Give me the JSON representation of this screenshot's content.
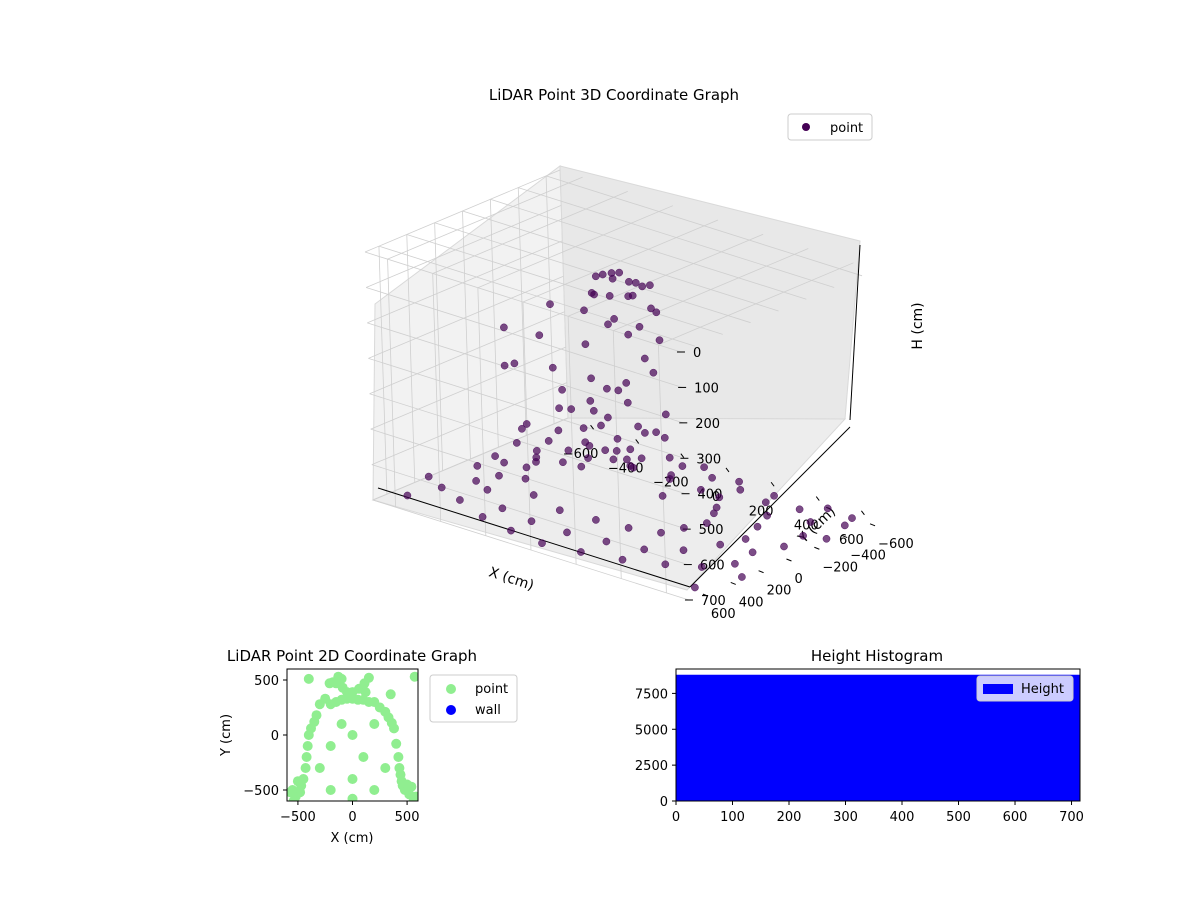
{
  "chart_data": [
    {
      "type": "scatter",
      "projection": "3d",
      "title": "LiDAR Point 3D Coordinate Graph",
      "xlabel": "X (cm)",
      "ylabel": "Y (cm)",
      "zlabel": "H (cm)",
      "xlim": [
        -700,
        700
      ],
      "ylim": [
        -700,
        700
      ],
      "zlim": [
        0,
        700
      ],
      "z_inverted": true,
      "xticks": [
        "−600",
        "−400",
        "−200",
        "0",
        "200",
        "400",
        "600"
      ],
      "yticks": [
        "−600",
        "−400",
        "−200",
        "0",
        "200",
        "400",
        "600"
      ],
      "zticks": [
        "0",
        "100",
        "200",
        "300",
        "400",
        "500",
        "600",
        "700"
      ],
      "grid": true,
      "legend": {
        "position": "top-right",
        "entries": [
          {
            "label": "point",
            "color": "#440154"
          }
        ]
      },
      "series": [
        {
          "name": "point",
          "color": "#440154",
          "points": [
            [
              -50,
              50,
              40
            ],
            [
              0,
              60,
              40
            ],
            [
              60,
              40,
              40
            ],
            [
              100,
              10,
              50
            ],
            [
              -100,
              20,
              60
            ],
            [
              -20,
              -20,
              40
            ],
            [
              40,
              -40,
              60
            ],
            [
              90,
              -60,
              60
            ],
            [
              -80,
              -60,
              60
            ],
            [
              10,
              100,
              80
            ],
            [
              -60,
              100,
              90
            ],
            [
              80,
              80,
              70
            ],
            [
              -140,
              -10,
              120
            ],
            [
              140,
              -20,
              120
            ],
            [
              -20,
              -110,
              120
            ],
            [
              60,
              -110,
              140
            ],
            [
              -120,
              80,
              150
            ],
            [
              120,
              70,
              150
            ],
            [
              -40,
              40,
              180
            ],
            [
              30,
              10,
              200
            ],
            [
              -100,
              -100,
              200
            ],
            [
              100,
              -100,
              220
            ],
            [
              -150,
              30,
              260
            ],
            [
              150,
              30,
              280
            ],
            [
              0,
              -150,
              300
            ],
            [
              -60,
              140,
              320
            ],
            [
              60,
              140,
              330
            ],
            [
              -30,
              -60,
              360
            ],
            [
              50,
              60,
              380
            ],
            [
              -130,
              -80,
              400
            ],
            [
              130,
              -80,
              420
            ],
            [
              -10,
              160,
              440
            ],
            [
              -160,
              -30,
              460
            ],
            [
              160,
              -20,
              470
            ],
            [
              40,
              -150,
              500
            ],
            [
              -40,
              -150,
              500
            ],
            [
              -90,
              120,
              520
            ],
            [
              90,
              120,
              540
            ],
            [
              0,
              0,
              560
            ],
            [
              -120,
              -120,
              580
            ],
            [
              120,
              -120,
              600
            ],
            [
              -180,
              40,
              610
            ],
            [
              180,
              40,
              620
            ],
            [
              -300,
              -200,
              650
            ],
            [
              -250,
              -300,
              660
            ],
            [
              -350,
              -100,
              655
            ],
            [
              -150,
              -280,
              660
            ],
            [
              0,
              -300,
              665
            ],
            [
              150,
              -280,
              662
            ],
            [
              250,
              -250,
              658
            ],
            [
              300,
              -150,
              660
            ],
            [
              350,
              -50,
              650
            ],
            [
              380,
              50,
              655
            ],
            [
              340,
              150,
              660
            ],
            [
              300,
              250,
              665
            ],
            [
              200,
              320,
              660
            ],
            [
              80,
              360,
              655
            ],
            [
              -80,
              360,
              660
            ],
            [
              -220,
              320,
              652
            ],
            [
              -330,
              200,
              648
            ],
            [
              -400,
              80,
              650
            ],
            [
              -420,
              -20,
              655
            ],
            [
              -450,
              -300,
              675
            ],
            [
              -500,
              -150,
              680
            ],
            [
              -550,
              0,
              680
            ],
            [
              -480,
              150,
              678
            ],
            [
              -380,
              -450,
              685
            ],
            [
              -250,
              -500,
              690
            ],
            [
              -100,
              -550,
              690
            ],
            [
              50,
              -520,
              688
            ],
            [
              200,
              -480,
              685
            ],
            [
              350,
              -420,
              680
            ],
            [
              430,
              -300,
              682
            ],
            [
              480,
              -150,
              678
            ],
            [
              520,
              0,
              680
            ],
            [
              500,
              150,
              675
            ],
            [
              430,
              300,
              680
            ],
            [
              330,
              420,
              678
            ],
            [
              200,
              480,
              672
            ],
            [
              50,
              520,
              670
            ],
            [
              -120,
              500,
              676
            ],
            [
              -280,
              450,
              680
            ],
            [
              -420,
              330,
              676
            ],
            [
              -520,
              250,
              684
            ],
            [
              -560,
              -250,
              690
            ],
            [
              -600,
              -400,
              695
            ],
            [
              -500,
              -500,
              695
            ],
            [
              -350,
              -580,
              698
            ],
            [
              -200,
              -620,
              698
            ],
            [
              -60,
              -640,
              700
            ],
            [
              120,
              -600,
              698
            ],
            [
              300,
              -560,
              695
            ],
            [
              450,
              -500,
              693
            ],
            [
              560,
              -400,
              690
            ],
            [
              620,
              -250,
              692
            ],
            [
              640,
              -80,
              690
            ],
            [
              600,
              80,
              688
            ],
            [
              -620,
              80,
              690
            ],
            [
              -640,
              -80,
              693
            ],
            [
              -580,
              400,
              690
            ],
            [
              -450,
              480,
              686
            ],
            [
              -300,
              560,
              690
            ],
            [
              -150,
              600,
              692
            ],
            [
              0,
              620,
              694
            ],
            [
              160,
              600,
              690
            ],
            [
              320,
              560,
              686
            ],
            [
              460,
              480,
              684
            ],
            [
              560,
              380,
              688
            ],
            [
              620,
              240,
              690
            ],
            [
              -650,
              -550,
              700
            ],
            [
              -600,
              -650,
              700
            ],
            [
              -450,
              -650,
              700
            ],
            [
              500,
              -620,
              700
            ],
            [
              620,
              -600,
              700
            ],
            [
              650,
              -500,
              698
            ],
            [
              -640,
              550,
              700
            ],
            [
              640,
              560,
              700
            ],
            [
              -700,
              300,
              700
            ],
            [
              -680,
              -300,
              700
            ],
            [
              680,
              -320,
              700
            ],
            [
              700,
              320,
              698
            ],
            [
              -200,
              -450,
              600
            ],
            [
              -300,
              -350,
              560
            ],
            [
              -400,
              -250,
              540
            ],
            [
              -380,
              100,
              520
            ],
            [
              -320,
              230,
              500
            ],
            [
              -250,
              -150,
              470
            ],
            [
              -220,
              120,
              440
            ],
            [
              -280,
              0,
              420
            ],
            [
              -350,
              -50,
              380
            ],
            [
              -420,
              180,
              350
            ],
            [
              -450,
              -120,
              320
            ],
            [
              -300,
              300,
              300
            ],
            [
              -500,
              50,
              280
            ],
            [
              -480,
              -250,
              260
            ]
          ]
        }
      ]
    },
    {
      "type": "scatter",
      "title": "LiDAR Point 2D Coordinate Graph",
      "xlabel": "X (cm)",
      "ylabel": "Y (cm)",
      "xlim": [
        -600,
        600
      ],
      "ylim": [
        -600,
        600
      ],
      "xticks": [
        "−500",
        "0",
        "500"
      ],
      "yticks": [
        "−500",
        "0",
        "500"
      ],
      "legend": {
        "position": "outside-right",
        "entries": [
          {
            "label": "point",
            "color": "#90ee90"
          },
          {
            "label": "wall",
            "color": "#0000ff"
          }
        ]
      },
      "series": [
        {
          "name": "point",
          "color": "#90ee90",
          "points": [
            [
              -400,
              510
            ],
            [
              -210,
              470
            ],
            [
              -180,
              480
            ],
            [
              -150,
              470
            ],
            [
              -130,
              530
            ],
            [
              -100,
              510
            ],
            [
              -90,
              430
            ],
            [
              -50,
              390
            ],
            [
              0,
              390
            ],
            [
              60,
              420
            ],
            [
              110,
              470
            ],
            [
              120,
              390
            ],
            [
              150,
              520
            ],
            [
              350,
              370
            ],
            [
              570,
              530
            ],
            [
              -300,
              280
            ],
            [
              -250,
              330
            ],
            [
              -200,
              280
            ],
            [
              -150,
              300
            ],
            [
              -100,
              320
            ],
            [
              -50,
              330
            ],
            [
              0,
              330
            ],
            [
              50,
              320
            ],
            [
              100,
              320
            ],
            [
              150,
              300
            ],
            [
              200,
              300
            ],
            [
              250,
              250
            ],
            [
              300,
              210
            ],
            [
              330,
              160
            ],
            [
              360,
              110
            ],
            [
              380,
              60
            ],
            [
              -330,
              180
            ],
            [
              -350,
              120
            ],
            [
              -380,
              60
            ],
            [
              -400,
              0
            ],
            [
              -410,
              -100
            ],
            [
              -420,
              -200
            ],
            [
              -430,
              -300
            ],
            [
              -450,
              -400
            ],
            [
              -470,
              -460
            ],
            [
              -480,
              -520
            ],
            [
              -520,
              -560
            ],
            [
              -540,
              -600
            ],
            [
              400,
              -80
            ],
            [
              420,
              -200
            ],
            [
              430,
              -300
            ],
            [
              440,
              -360
            ],
            [
              450,
              -420
            ],
            [
              460,
              -460
            ],
            [
              480,
              -500
            ],
            [
              520,
              -540
            ],
            [
              560,
              -600
            ],
            [
              -550,
              -500
            ],
            [
              -570,
              -520
            ],
            [
              -500,
              -420
            ],
            [
              500,
              -450
            ],
            [
              540,
              -470
            ],
            [
              580,
              -560
            ],
            [
              -200,
              -100
            ],
            [
              100,
              -200
            ],
            [
              0,
              0
            ],
            [
              -100,
              100
            ],
            [
              200,
              100
            ],
            [
              -300,
              -300
            ],
            [
              300,
              -300
            ],
            [
              0,
              -400
            ],
            [
              -200,
              -500
            ],
            [
              200,
              -500
            ],
            [
              0,
              -580
            ]
          ]
        },
        {
          "name": "wall",
          "color": "#0000ff",
          "points": []
        }
      ]
    },
    {
      "type": "bar",
      "title": "Height Histogram",
      "xlabel": "",
      "ylabel": "",
      "xlim": [
        0,
        715
      ],
      "ylim": [
        0,
        9200
      ],
      "xticks": [
        "0",
        "100",
        "200",
        "300",
        "400",
        "500",
        "600",
        "700"
      ],
      "yticks": [
        "0",
        "2500",
        "5000",
        "7500"
      ],
      "legend": {
        "position": "top-right",
        "entries": [
          {
            "label": "Height",
            "color": "#0000ff"
          }
        ]
      },
      "series": [
        {
          "name": "Height",
          "color": "#0000ff",
          "bin_range": [
            0,
            715
          ],
          "count": 8800
        }
      ]
    }
  ]
}
